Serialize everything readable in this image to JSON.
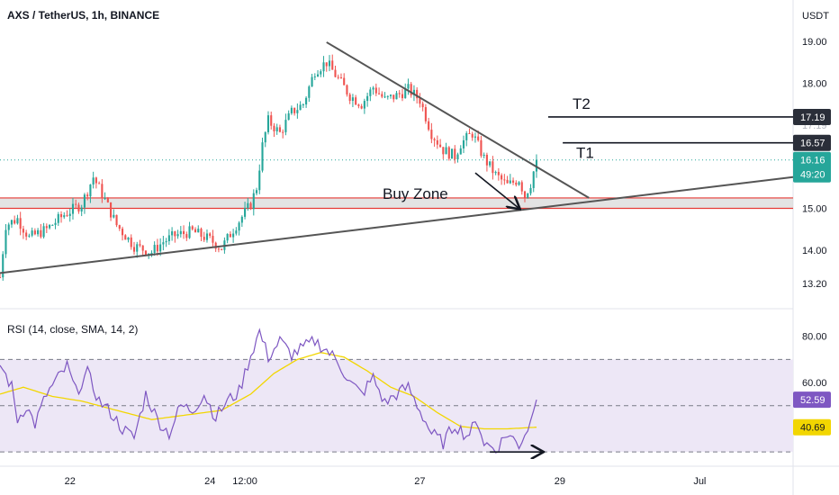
{
  "header": {
    "symbol_title": "AXS / TetherUS, 1h, BINANCE"
  },
  "currency": "USDT",
  "colors": {
    "up": "#26a69a",
    "down": "#ef5350",
    "rsi_line": "#7e57c2",
    "rsi_ma": "#f2d600",
    "rsi_band": "#ede7f6",
    "buy_zone_line": "#e53935",
    "buy_zone_fill": "#d9d9d9",
    "trend_line": "#555555",
    "last_price_line": "#26a69a",
    "target_tag": "#2a2e39"
  },
  "chart_data": [
    {
      "type": "candlestick",
      "title": "AXS / TetherUS, 1h, BINANCE",
      "ylabel": "USDT",
      "ylim": [
        12.7,
        19.6
      ],
      "y_ticks": [
        "19.00",
        "18.00",
        "17.19",
        "16.57",
        "16.16",
        "15.00",
        "14.00",
        "13.20"
      ],
      "y_tick_values": [
        19.0,
        18.0,
        14.0,
        13.2,
        15.0
      ],
      "x_ticks": [
        "22",
        "24",
        "12:00",
        "27",
        "29",
        "Jul"
      ],
      "x_tick_hours": [
        24,
        72,
        84,
        144,
        192,
        240
      ],
      "x_range_hours": [
        0,
        272
      ],
      "price_path": [
        [
          0,
          13.35
        ],
        [
          2,
          14.6
        ],
        [
          6,
          14.75
        ],
        [
          10,
          14.3
        ],
        [
          16,
          14.5
        ],
        [
          22,
          14.85
        ],
        [
          28,
          15.1
        ],
        [
          32,
          15.75
        ],
        [
          36,
          15.2
        ],
        [
          40,
          14.6
        ],
        [
          46,
          14.1
        ],
        [
          52,
          13.95
        ],
        [
          56,
          14.2
        ],
        [
          60,
          14.35
        ],
        [
          66,
          14.45
        ],
        [
          72,
          14.25
        ],
        [
          76,
          14.05
        ],
        [
          80,
          14.5
        ],
        [
          86,
          15.1
        ],
        [
          88,
          15.5
        ],
        [
          90,
          16.5
        ],
        [
          92,
          17.1
        ],
        [
          96,
          16.8
        ],
        [
          100,
          17.3
        ],
        [
          104,
          17.5
        ],
        [
          108,
          18.3
        ],
        [
          112,
          18.5
        ],
        [
          116,
          18.1
        ],
        [
          120,
          17.7
        ],
        [
          124,
          17.5
        ],
        [
          128,
          17.9
        ],
        [
          132,
          17.6
        ],
        [
          136,
          17.7
        ],
        [
          140,
          17.85
        ],
        [
          144,
          17.6
        ],
        [
          148,
          16.8
        ],
        [
          152,
          16.4
        ],
        [
          156,
          16.25
        ],
        [
          158,
          16.55
        ],
        [
          162,
          16.8
        ],
        [
          166,
          16.2
        ],
        [
          170,
          15.8
        ],
        [
          174,
          15.55
        ],
        [
          178,
          15.7
        ],
        [
          180,
          15.3
        ],
        [
          182,
          15.6
        ],
        [
          184,
          16.16
        ]
      ],
      "annotations": {
        "buy_zone": {
          "label": "Buy Zone",
          "low": 15.0,
          "high": 15.25
        },
        "targets": [
          {
            "label": "T2",
            "price": 17.19,
            "tag": "17.19"
          },
          {
            "label": "T1",
            "price": 16.57,
            "tag": "16.57"
          }
        ],
        "last_price": {
          "price": 16.16,
          "tag": "16.16",
          "countdown": "49:20"
        },
        "descending_trendline": [
          [
            112,
            18.98
          ],
          [
            202,
            15.25
          ]
        ],
        "ascending_trendline": [
          [
            0,
            13.45
          ],
          [
            272,
            15.75
          ]
        ],
        "arrow_from": [
          163,
          15.85
        ],
        "arrow_to": [
          178,
          15.0
        ]
      }
    },
    {
      "type": "line",
      "title": "RSI (14, close, SMA, 14, 2)",
      "ylim": [
        25,
        90
      ],
      "y_ticks": [
        "80.00",
        "60.00"
      ],
      "y_tick_values": [
        80,
        60
      ],
      "levels": [
        70,
        50,
        30
      ],
      "last_values": {
        "rsi": "52.59",
        "rsi_ma": "40.69"
      },
      "rsi_path": [
        [
          0,
          68
        ],
        [
          4,
          58
        ],
        [
          6,
          44
        ],
        [
          9,
          50
        ],
        [
          12,
          42
        ],
        [
          16,
          55
        ],
        [
          20,
          62
        ],
        [
          23,
          67
        ],
        [
          26,
          56
        ],
        [
          30,
          64
        ],
        [
          34,
          52
        ],
        [
          38,
          47
        ],
        [
          42,
          40
        ],
        [
          46,
          36
        ],
        [
          50,
          55
        ],
        [
          54,
          44
        ],
        [
          58,
          38
        ],
        [
          62,
          50
        ],
        [
          66,
          48
        ],
        [
          70,
          55
        ],
        [
          74,
          45
        ],
        [
          78,
          52
        ],
        [
          82,
          56
        ],
        [
          86,
          72
        ],
        [
          89,
          82
        ],
        [
          92,
          71
        ],
        [
          96,
          78
        ],
        [
          100,
          72
        ],
        [
          104,
          75
        ],
        [
          108,
          78
        ],
        [
          112,
          74
        ],
        [
          116,
          69
        ],
        [
          120,
          60
        ],
        [
          124,
          55
        ],
        [
          128,
          62
        ],
        [
          132,
          51
        ],
        [
          136,
          55
        ],
        [
          140,
          58
        ],
        [
          144,
          48
        ],
        [
          148,
          38
        ],
        [
          152,
          34
        ],
        [
          156,
          42
        ],
        [
          160,
          37
        ],
        [
          164,
          43
        ],
        [
          166,
          34
        ],
        [
          170,
          31
        ],
        [
          174,
          38
        ],
        [
          178,
          33
        ],
        [
          182,
          43
        ],
        [
          184,
          52.59
        ]
      ],
      "rsi_ma_path": [
        [
          0,
          55
        ],
        [
          8,
          58
        ],
        [
          18,
          54
        ],
        [
          28,
          52
        ],
        [
          40,
          48
        ],
        [
          52,
          44
        ],
        [
          64,
          46
        ],
        [
          76,
          48
        ],
        [
          86,
          55
        ],
        [
          94,
          64
        ],
        [
          102,
          70
        ],
        [
          110,
          73
        ],
        [
          118,
          71
        ],
        [
          126,
          65
        ],
        [
          134,
          58
        ],
        [
          142,
          54
        ],
        [
          150,
          47
        ],
        [
          158,
          41
        ],
        [
          166,
          40
        ],
        [
          174,
          40
        ],
        [
          184,
          40.69
        ]
      ],
      "arrow_from": [
        168,
        30
      ],
      "arrow_to": [
        186,
        30
      ]
    }
  ]
}
